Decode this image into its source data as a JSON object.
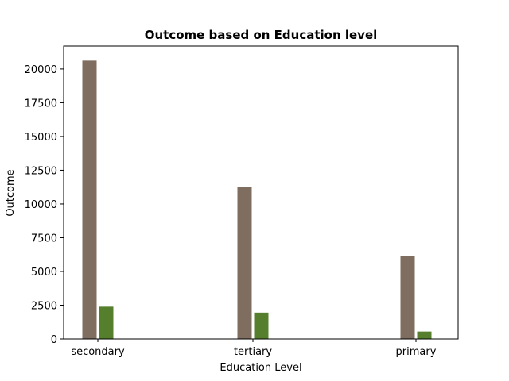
{
  "chart_data": {
    "type": "bar",
    "title": "Outcome based on Education level",
    "xlabel": "Education Level",
    "ylabel": "Outcome",
    "categories": [
      "secondary",
      "tertiary",
      "primary"
    ],
    "ylim": [
      0,
      21700
    ],
    "yticks": [
      0,
      2500,
      5000,
      7500,
      10000,
      12500,
      15000,
      17500,
      20000
    ],
    "grid": false,
    "series": [
      {
        "values": [
          20650,
          11300,
          6150
        ],
        "color": "#7f6d5f"
      },
      {
        "values": [
          2420,
          1980,
          580
        ],
        "color": "#557f2d"
      }
    ]
  }
}
